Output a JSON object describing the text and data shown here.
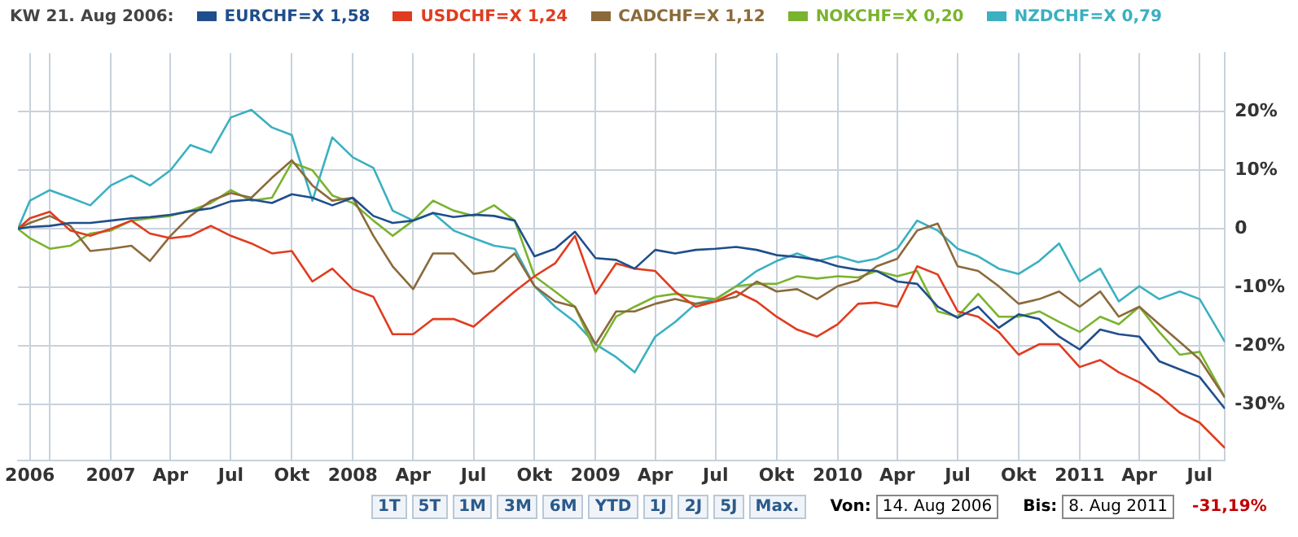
{
  "chart_data": {
    "type": "line",
    "legend_title": "KW 21. Aug 2006:",
    "legend": "top",
    "grid": true,
    "x": [
      "2006-08-14",
      "2006-09-01",
      "2006-10-01",
      "2006-11-01",
      "2006-12-01",
      "2007-01-01",
      "2007-02-01",
      "2007-03-01",
      "2007-04-01",
      "2007-05-01",
      "2007-06-01",
      "2007-07-01",
      "2007-08-01",
      "2007-09-01",
      "2007-10-01",
      "2007-11-01",
      "2007-12-01",
      "2008-01-01",
      "2008-02-01",
      "2008-03-01",
      "2008-04-01",
      "2008-05-01",
      "2008-06-01",
      "2008-07-01",
      "2008-08-01",
      "2008-09-01",
      "2008-10-01",
      "2008-11-01",
      "2008-12-01",
      "2009-01-01",
      "2009-02-01",
      "2009-03-01",
      "2009-04-01",
      "2009-05-01",
      "2009-06-01",
      "2009-07-01",
      "2009-08-01",
      "2009-09-01",
      "2009-10-01",
      "2009-11-01",
      "2009-12-01",
      "2010-01-01",
      "2010-02-01",
      "2010-03-01",
      "2010-04-01",
      "2010-05-01",
      "2010-06-01",
      "2010-07-01",
      "2010-08-01",
      "2010-09-01",
      "2010-10-01",
      "2010-11-01",
      "2010-12-01",
      "2011-01-01",
      "2011-02-01",
      "2011-03-01",
      "2011-04-01",
      "2011-05-01",
      "2011-06-01",
      "2011-07-01",
      "2011-08-08"
    ],
    "series": [
      {
        "name": "EURCHF=X 1,58",
        "color": "#1f4e8c",
        "values": [
          0,
          0.3,
          0.5,
          1,
          1,
          1.4,
          1.8,
          2,
          2.4,
          3,
          3.5,
          4.7,
          5,
          4.4,
          5.9,
          5.3,
          4,
          5.3,
          2.2,
          1,
          1.4,
          2.7,
          2,
          2.4,
          2.2,
          1.4,
          -4.7,
          -3.4,
          -0.5,
          -5,
          -5.3,
          -6.8,
          -3.6,
          -4.2,
          -3.6,
          -3.4,
          -3.1,
          -3.6,
          -4.5,
          -4.8,
          -5.3,
          -6.4,
          -7,
          -7.2,
          -9,
          -9.4,
          -13.3,
          -15.2,
          -13.3,
          -16.9,
          -14.6,
          -15.4,
          -18.4,
          -20.6,
          -17.2,
          -18,
          -18.4,
          -22.6,
          -24,
          -25.3,
          -30.7
        ]
      },
      {
        "name": "USDCHF=X 1,24",
        "color": "#e03c1f",
        "values": [
          0,
          1.8,
          2.9,
          -0.3,
          -1.2,
          0,
          1.4,
          -0.8,
          -1.6,
          -1.2,
          0.5,
          -1.2,
          -2.5,
          -4.2,
          -3.8,
          -9,
          -6.8,
          -10.3,
          -11.6,
          -18,
          -18,
          -15.4,
          -15.4,
          -16.7,
          -13.7,
          -10.7,
          -8.1,
          -5.9,
          -1.2,
          -11.1,
          -5.9,
          -6.8,
          -7.2,
          -10.7,
          -13.3,
          -12.4,
          -10.7,
          -12.4,
          -15,
          -17.2,
          -18.4,
          -16.3,
          -12.8,
          -12.6,
          -13.3,
          -6.4,
          -7.8,
          -14.1,
          -15,
          -17.6,
          -21.5,
          -19.7,
          -19.7,
          -23.6,
          -22.4,
          -24.5,
          -26.2,
          -28.4,
          -31.4,
          -33.1,
          -37.4
        ]
      },
      {
        "name": "CADCHF=X 1,12",
        "color": "#8b6a3a",
        "values": [
          0,
          1,
          2.2,
          0.5,
          -3.8,
          -3.4,
          -2.9,
          -5.5,
          -1.2,
          2.2,
          4.8,
          6.1,
          5.3,
          8.7,
          11.7,
          7.4,
          4.8,
          5.3,
          -1.2,
          -6.4,
          -10.3,
          -4.2,
          -4.2,
          -7.7,
          -7.2,
          -4.2,
          -9.8,
          -12.4,
          -13.3,
          -19.7,
          -14.1,
          -14.1,
          -12.8,
          -12,
          -12.8,
          -12.4,
          -11.6,
          -9,
          -10.7,
          -10.3,
          -12,
          -9.8,
          -8.8,
          -6.4,
          -5.1,
          -0.3,
          0.9,
          -6.4,
          -7.2,
          -9.8,
          -12.8,
          -12,
          -10.7,
          -13.3,
          -10.7,
          -15,
          -13.3,
          -16.3,
          -19.3,
          -22.3,
          -28.8
        ]
      },
      {
        "name": "NOKCHF=X 0,20",
        "color": "#7ab32e",
        "values": [
          0,
          -1.6,
          -3.4,
          -2.9,
          -0.8,
          -0.3,
          1.4,
          1.8,
          2.2,
          3.1,
          4.4,
          6.6,
          4.8,
          5.3,
          11.3,
          10,
          5.7,
          4.4,
          1.4,
          -1.2,
          1.4,
          4.8,
          3.1,
          2.2,
          4,
          1.4,
          -8.1,
          -10.7,
          -13.3,
          -21,
          -15,
          -13.3,
          -11.6,
          -11.1,
          -11.6,
          -12,
          -9.8,
          -9.4,
          -9.4,
          -8.1,
          -8.5,
          -8.1,
          -8.3,
          -7.2,
          -8.1,
          -7.2,
          -14.1,
          -15,
          -11.1,
          -15,
          -15,
          -14.1,
          -15.9,
          -17.6,
          -15,
          -16.3,
          -13.3,
          -17.6,
          -21.5,
          -21,
          -28.8
        ]
      },
      {
        "name": "NZDCHF=X 0,79",
        "color": "#3ab0c0",
        "values": [
          0,
          4.8,
          6.6,
          5.3,
          4,
          7.4,
          9.1,
          7.4,
          10,
          14.3,
          13,
          19,
          20.3,
          17.3,
          16,
          4.8,
          15.6,
          12.2,
          10.4,
          3.1,
          1.4,
          2.7,
          -0.3,
          -1.6,
          -2.9,
          -3.4,
          -9.8,
          -13.3,
          -15.9,
          -19.7,
          -21.9,
          -24.5,
          -18.4,
          -15.9,
          -12.8,
          -12,
          -9.8,
          -7.2,
          -5.5,
          -4.2,
          -5.5,
          -4.7,
          -5.7,
          -5.1,
          -3.4,
          1.4,
          -0.3,
          -3.4,
          -4.7,
          -6.8,
          -7.7,
          -5.5,
          -2.5,
          -9,
          -6.8,
          -12.4,
          -9.8,
          -12,
          -10.7,
          -12,
          -19.3
        ]
      }
    ],
    "xlim": [
      "2006-08-14",
      "2011-08-08"
    ],
    "xticks": [
      {
        "value": "2006-09-01",
        "label": "2006"
      },
      {
        "value": "2006-10-01",
        "label": null
      },
      {
        "value": "2007-01-01",
        "label": "2007"
      },
      {
        "value": "2007-04-01",
        "label": "Apr"
      },
      {
        "value": "2007-07-01",
        "label": "Jul"
      },
      {
        "value": "2007-10-01",
        "label": "Okt"
      },
      {
        "value": "2008-01-01",
        "label": "2008"
      },
      {
        "value": "2008-04-01",
        "label": "Apr"
      },
      {
        "value": "2008-07-01",
        "label": "Jul"
      },
      {
        "value": "2008-10-01",
        "label": "Okt"
      },
      {
        "value": "2009-01-01",
        "label": "2009"
      },
      {
        "value": "2009-04-01",
        "label": "Apr"
      },
      {
        "value": "2009-07-01",
        "label": "Jul"
      },
      {
        "value": "2009-10-01",
        "label": "Okt"
      },
      {
        "value": "2010-01-01",
        "label": "2010"
      },
      {
        "value": "2010-04-01",
        "label": "Apr"
      },
      {
        "value": "2010-07-01",
        "label": "Jul"
      },
      {
        "value": "2010-10-01",
        "label": "Okt"
      },
      {
        "value": "2011-01-01",
        "label": "2011"
      },
      {
        "value": "2011-04-01",
        "label": "Apr"
      },
      {
        "value": "2011-07-01",
        "label": "Jul"
      }
    ],
    "ylim": [
      -39.5,
      30
    ],
    "yticks": [
      {
        "value": -30,
        "label": "-30%"
      },
      {
        "value": -20,
        "label": "-20%"
      },
      {
        "value": -10,
        "label": "-10%"
      },
      0,
      {
        "value": 10,
        "label": "10%"
      },
      {
        "value": 20,
        "label": "20%"
      }
    ],
    "annotations": [
      "1T",
      "5T",
      "1M",
      "3M",
      "6M",
      "YTD",
      "1J",
      "2J",
      "5J",
      "Max.",
      "Von:",
      "14. Aug 2006",
      "Bis:",
      "8. Aug 2011",
      "-31,19%"
    ]
  }
}
